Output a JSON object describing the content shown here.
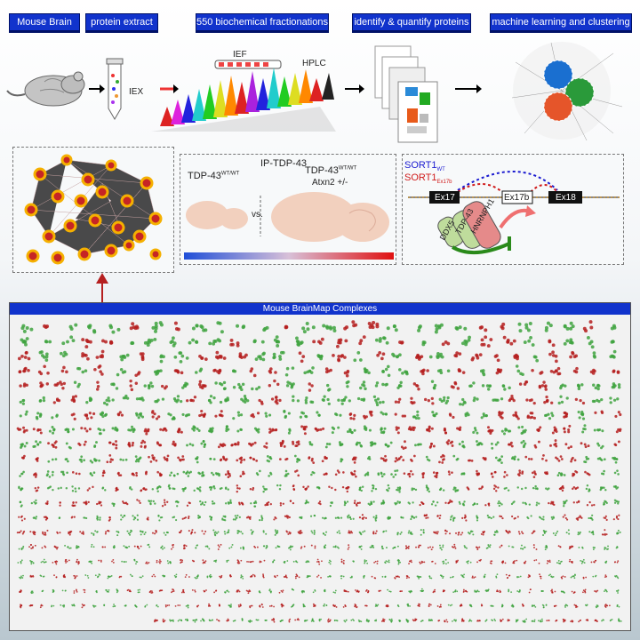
{
  "header_steps": [
    {
      "label": "Mouse Brain"
    },
    {
      "label": "protein extract"
    },
    {
      "label": "550 biochemical fractionations"
    },
    {
      "label": "identify & quantify proteins"
    },
    {
      "label": "machine learning and clustering"
    }
  ],
  "pipeline": {
    "iex_label": "IEX",
    "ief_label": "IEF",
    "hplc_label": "HPLC"
  },
  "middle_panel": {
    "left_genotype": "TDP-43",
    "left_genotype_sup": "WT/WT",
    "ip_label": "IP-TDP-43",
    "right_genotype": "TDP-43",
    "right_genotype_sup": "WT/WT",
    "right_genotype_line2": "Atxn2 +/-",
    "vs_label": "vs."
  },
  "splice_panel": {
    "sort1_wt": "SORT1",
    "sort1_wt_sub": "WT",
    "sort1_ex17b": "SORT1",
    "sort1_ex17b_sub": "Ex17b",
    "ex17": "Ex17",
    "ex17b": "Ex17b",
    "ex18": "Ex18",
    "ddx5": "DDX5",
    "tdp43": "TDP-43",
    "hnrnph1": "HNRNPH1"
  },
  "complexes_title": "Mouse BrainMap Complexes",
  "colors": {
    "blue_label": "#1133cc",
    "red_node": "#b51f1f",
    "green_node": "#3fa33f"
  }
}
